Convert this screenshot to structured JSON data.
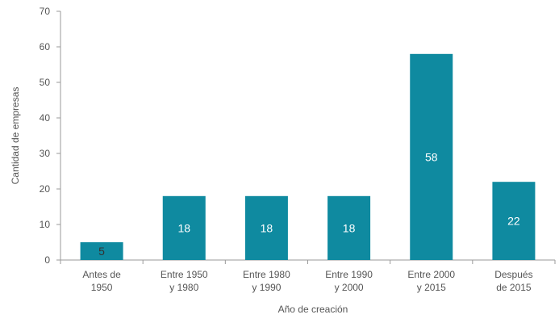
{
  "chart_data": {
    "type": "bar",
    "categories": [
      [
        "Antes de",
        "1950"
      ],
      [
        "Entre 1950",
        "y 1980"
      ],
      [
        "Entre 1980",
        "y 1990"
      ],
      [
        "Entre 1990",
        "y 2000"
      ],
      [
        "Entre 2000",
        "y 2015"
      ],
      [
        "Después",
        "de 2015"
      ]
    ],
    "values": [
      5,
      18,
      18,
      18,
      58,
      22
    ],
    "xlabel": "Año de creación",
    "ylabel": "Cantidad de empresas",
    "ylim": [
      0,
      70
    ],
    "yticks": [
      0,
      10,
      20,
      30,
      40,
      50,
      60,
      70
    ],
    "grid": false,
    "colors": {
      "bar": "#0f8aa0",
      "axis": "#9a9a9a",
      "text": "#555555",
      "label_inside": "#ffffff",
      "label_outside": "#333333"
    }
  }
}
